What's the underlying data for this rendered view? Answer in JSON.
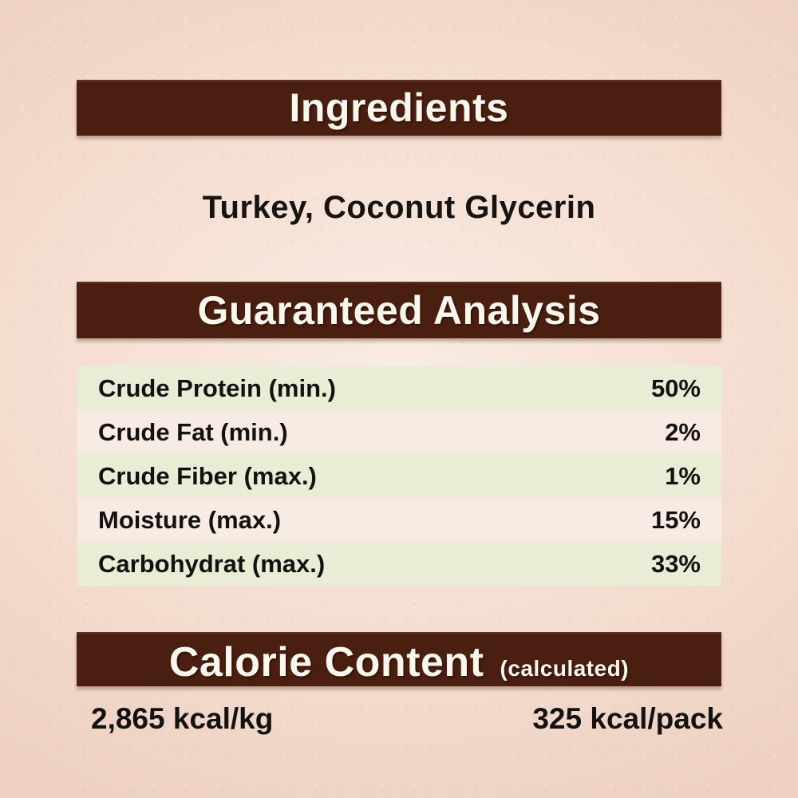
{
  "label": {
    "ingredients": {
      "title": "Ingredients",
      "list": "Turkey, Coconut Glycerin"
    },
    "guaranteed_analysis": {
      "title": "Guaranteed Analysis",
      "rows": [
        {
          "label": "Crude Protein (min.)",
          "value": "50%"
        },
        {
          "label": "Crude Fat (min.)",
          "value": "2%"
        },
        {
          "label": "Crude Fiber (max.)",
          "value": "1%"
        },
        {
          "label": "Moisture (max.)",
          "value": "15%"
        },
        {
          "label": "Carbohydrat (max.)",
          "value": "33%"
        }
      ]
    },
    "calorie_content": {
      "title": "Calorie Content",
      "qualifier": "(calculated)",
      "per_kg": "2,865 kcal/kg",
      "per_pack": "325 kcal/pack"
    },
    "colors": {
      "banner_brown": "#4b1f10",
      "background_pink": "#f5ded1",
      "row_green": "#eaedd6",
      "row_light": "#f8ebe4",
      "text_dark": "#141210",
      "banner_text": "#fbf6ee"
    }
  }
}
